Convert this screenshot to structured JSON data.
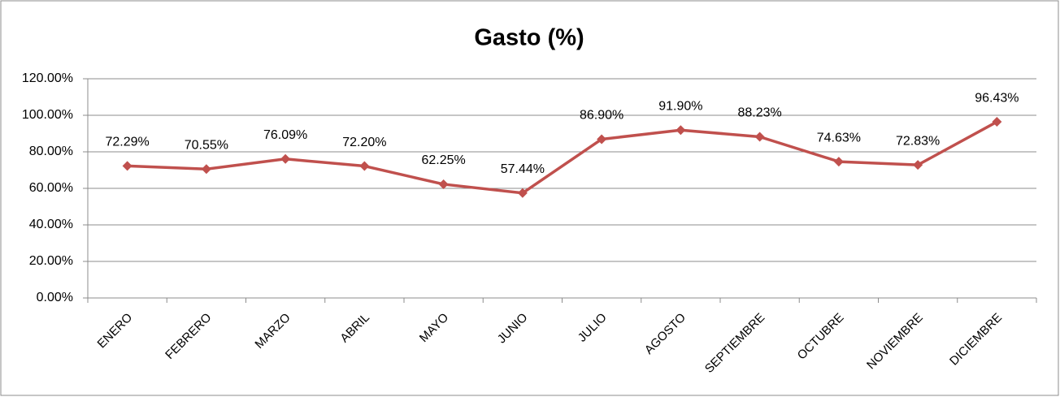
{
  "chart_data": {
    "type": "line",
    "title": "Gasto (%)",
    "categories": [
      "ENERO",
      "FEBRERO",
      "MARZO",
      "ABRIL",
      "MAYO",
      "JUNIO",
      "JULIO",
      "AGOSTO",
      "SEPTIEMBRE",
      "OCTUBRE",
      "NOVIEMBRE",
      "DICIEMBRE"
    ],
    "values": [
      72.29,
      70.55,
      76.09,
      72.2,
      62.25,
      57.44,
      86.9,
      91.9,
      88.23,
      74.63,
      72.83,
      96.43
    ],
    "value_labels": [
      "72.29%",
      "70.55%",
      "76.09%",
      "72.20%",
      "62.25%",
      "57.44%",
      "86.90%",
      "91.90%",
      "88.23%",
      "74.63%",
      "72.83%",
      "96.43%"
    ],
    "color": "#c0504d",
    "ylim": [
      0,
      120
    ],
    "yticks": [
      {
        "value": 0,
        "label": "0.00%"
      },
      {
        "value": 20,
        "label": "20.00%"
      },
      {
        "value": 40,
        "label": "40.00%"
      },
      {
        "value": 60,
        "label": "60.00%"
      },
      {
        "value": 80,
        "label": "80.00%"
      },
      {
        "value": 100,
        "label": "100.00%"
      },
      {
        "value": 120,
        "label": "120.00%"
      }
    ],
    "grid": true
  }
}
